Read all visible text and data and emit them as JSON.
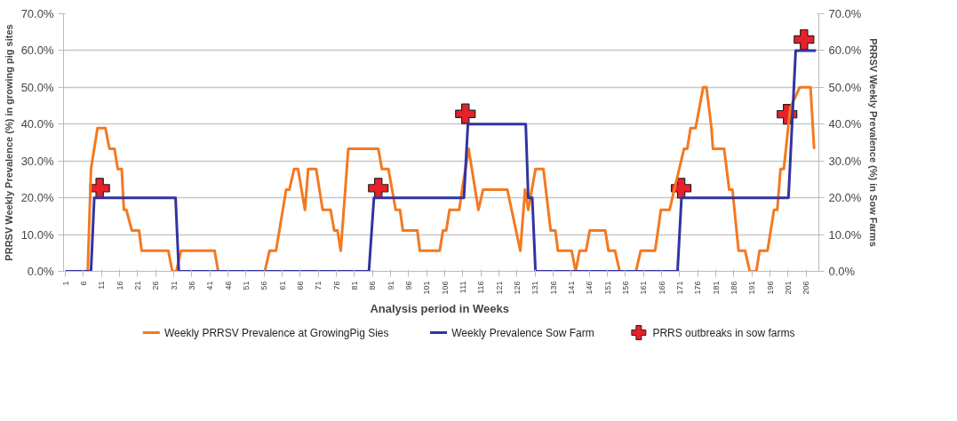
{
  "chart_data": {
    "type": "line",
    "xlabel": "Analysis  period in Weeks",
    "ylabel": "PRRSV Weekly Prevalence (%) in growing pig sites",
    "y2label": "PRRSV Weekly Prevalence (%) in Sow Farms",
    "xlim": [
      0.5,
      209.5
    ],
    "xticks": [
      1,
      6,
      11,
      16,
      21,
      26,
      31,
      36,
      41,
      46,
      51,
      56,
      61,
      66,
      71,
      76,
      81,
      86,
      91,
      96,
      101,
      106,
      111,
      116,
      121,
      126,
      131,
      136,
      141,
      146,
      151,
      156,
      161,
      166,
      171,
      176,
      181,
      186,
      191,
      196,
      201,
      206
    ],
    "ylim": [
      0,
      70
    ],
    "yticks": [
      {
        "value": 0,
        "label": "0.0%"
      },
      {
        "value": 10,
        "label": "10.0%"
      },
      {
        "value": 20,
        "label": "20.0%"
      },
      {
        "value": 30,
        "label": "30.0%"
      },
      {
        "value": 40,
        "label": "40.0%"
      },
      {
        "value": 50,
        "label": "50.0%"
      },
      {
        "value": 60,
        "label": "60.0%"
      },
      {
        "value": 70,
        "label": "70.0%"
      }
    ],
    "y2lim": [
      0,
      70
    ],
    "y2ticks": [
      {
        "value": 0,
        "label": "0.0%"
      },
      {
        "value": 10,
        "label": "10.0%"
      },
      {
        "value": 20,
        "label": "20.0%"
      },
      {
        "value": 30,
        "label": "30.0%"
      },
      {
        "value": 40,
        "label": "40.0%"
      },
      {
        "value": 50,
        "label": "50.0%"
      },
      {
        "value": 60,
        "label": "60.0%"
      },
      {
        "value": 70,
        "label": "70.0%"
      }
    ],
    "grid": "y",
    "legend": "bottom",
    "series": [
      {
        "name": "Weekly PRRSV  Prevalence at GrowingPig Sies",
        "color": "#f47920",
        "marker": "none",
        "x": [
          1,
          7.2,
          8.1,
          9.9,
          12.1,
          13.2,
          14.6,
          15.5,
          16.6,
          17.2,
          17.9,
          19.4,
          21.4,
          22.1,
          29.5,
          30.6,
          31.7,
          33,
          42.3,
          43.3,
          56.2,
          57.5,
          59.3,
          62.1,
          63,
          64.3,
          65.4,
          67.3,
          68.2,
          70.4,
          72.2,
          74.4,
          75.4,
          76.3,
          77.2,
          79.3,
          87.6,
          88.6,
          90.4,
          92.4,
          93.6,
          94.4,
          98.4,
          99.1,
          104.6,
          105.5,
          106.4,
          107.3,
          110,
          110.8,
          112.6,
          115.3,
          116.6,
          123.3,
          126.9,
          128.2,
          129.1,
          131.1,
          133.3,
          135.3,
          136.6,
          137.3,
          141.1,
          142.2,
          143.3,
          145.1,
          146.1,
          150.4,
          151.3,
          153.1,
          154.4,
          158.9,
          160.2,
          164.2,
          165.8,
          168.2,
          169.5,
          172.2,
          173.1,
          174,
          175.4,
          177.5,
          178.4,
          179.8,
          180.2,
          183.3,
          184.7,
          185.6,
          187.3,
          189.1,
          190.4,
          192.2,
          193.1,
          195.3,
          197.1,
          198,
          198.9,
          199.8,
          201.6,
          204.2,
          207.2,
          208.2
        ],
        "values": [
          0,
          0,
          27.8,
          38.9,
          38.9,
          33.3,
          33.3,
          27.8,
          27.8,
          16.7,
          16.7,
          11.1,
          11.1,
          5.6,
          5.6,
          0,
          0,
          5.6,
          5.6,
          0,
          0,
          5.6,
          5.6,
          22.2,
          22.2,
          27.8,
          27.8,
          16.7,
          27.8,
          27.8,
          16.7,
          16.7,
          11.1,
          11.1,
          5.6,
          33.3,
          33.3,
          27.8,
          27.8,
          16.7,
          16.7,
          11.1,
          11.1,
          5.6,
          5.6,
          11.1,
          11.1,
          16.7,
          16.7,
          22.2,
          33.3,
          16.7,
          22.2,
          22.2,
          5.6,
          22.2,
          16.7,
          27.8,
          27.8,
          11.1,
          11.1,
          5.6,
          5.6,
          0,
          5.6,
          5.6,
          11.1,
          11.1,
          5.6,
          5.6,
          0,
          0,
          5.6,
          5.6,
          16.7,
          16.7,
          22.2,
          33.3,
          33.3,
          38.9,
          38.9,
          50,
          50,
          38.9,
          33.3,
          33.3,
          22.2,
          22.2,
          5.6,
          5.6,
          0,
          0,
          5.6,
          5.6,
          16.7,
          16.7,
          27.8,
          27.8,
          44.4,
          50,
          50,
          33.3
        ]
      },
      {
        "name": "Weekly Prevalence Sow Farm",
        "color": "#3333a0",
        "marker": "none",
        "x": [
          1,
          8.1,
          9,
          31.5,
          32.4,
          85,
          86.4,
          111.3,
          112.4,
          128.4,
          129.1,
          130.2,
          131.1,
          170.4,
          171.5,
          201.1,
          203.1,
          208.7
        ],
        "values": [
          0,
          0,
          20,
          20,
          0,
          0,
          20,
          20,
          40,
          40,
          20,
          20,
          0,
          0,
          20,
          20,
          60,
          60
        ]
      },
      {
        "name": "PRRS outbreaks in sow farms",
        "type": "scatter",
        "color": "#e8202a",
        "marker": "cross",
        "x": [
          10.5,
          87.6,
          111.7,
          171.4,
          200.7,
          205.4
        ],
        "values": [
          22.6,
          22.6,
          42.8,
          22.6,
          42.7,
          63
        ]
      }
    ]
  }
}
